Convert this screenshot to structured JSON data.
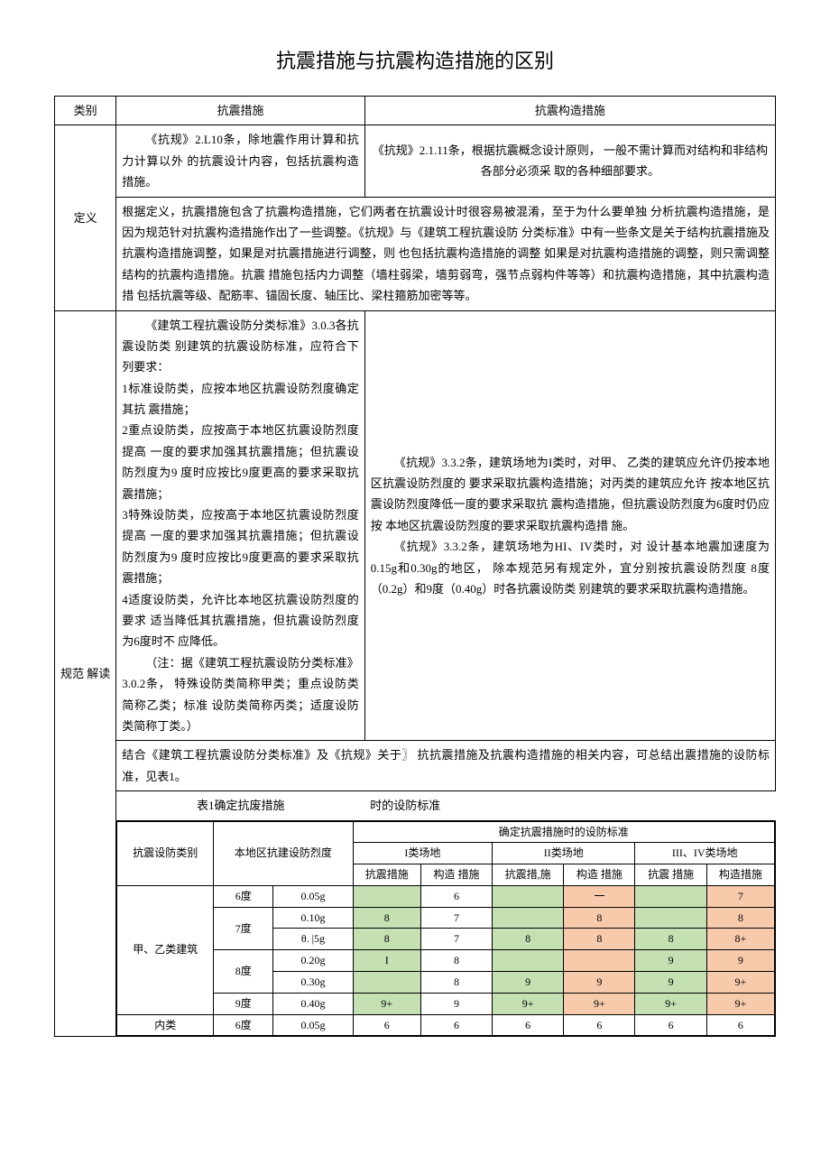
{
  "title": "抗震措施与抗震构造措施的区别",
  "headers": {
    "cat": "类别",
    "c1": "抗震措施",
    "c2": "抗震构造措施"
  },
  "rows": {
    "def_label": "定义",
    "def_c1": "《抗规》2.L10条，除地震作用计算和抗力计算以外 的抗震设计内容，包括抗震构造措施。",
    "def_c2": "《抗规》2.1.11条，根据抗震概念设计原则， 一般不需计算而对结构和非结构各部分必须采 取的各种细部要求。",
    "def_note": "根据定义，抗震措施包含了抗震构造措施，它们两者在抗震设计时很容易被混淆，至于为什么要单独 分析抗震构造措施，是因为规范针对抗震构造措施作出了一些调整。《抗规》与《建筑工程抗震设防 分类标准》中有一些条文是关于结构抗震措施及抗震构造措施调整，如果是对抗震措施进行调整，则 也包括抗震构造措施的调整 如果是对抗震构造措施的调整，则只需调整结构的抗震构造措施。抗震 措施包括内力调整（墙柱弱梁，墙剪弱弯，强节点弱构件等等）和抗震构造措施，其中抗震构造措 包括抗震等级、配筋率、锚固长度、轴压比、梁柱箍筋加密等等。",
    "spec_label": "规范 解读",
    "spec_c1_p1": "《建筑工程抗震设防分类标准》3.0.3各抗震设防类 别建筑的抗震设防标准，应符合下列要求：",
    "spec_c1_p2": "1标准设防类，应按本地区抗震设防烈度确定其抗 震措施；",
    "spec_c1_p3": "2重点设防类，应按高于本地区抗震设防烈度提高 一度的要求加强其抗震措施；但抗震设防烈度为9 度时应按比9度更高的要求采取抗震措施；",
    "spec_c1_p4": "3特殊设防类，应按高于本地区抗震设防烈度提高 一度的要求加强其抗震措施；但抗震设防烈度为9 度时应按比9度更高的要求采取抗震措施；",
    "spec_c1_p5": "4适度设防类，允许比本地区抗震设防烈度的要求 适当降低其抗震措施，但抗震设防烈度为6度时不 应降低。",
    "spec_c1_p6": "（注：据《建筑工程抗震设防分类标准》3.0.2条，  特殊设防类简称甲类；重点设防类简称乙类；标准 设防类简称丙类；适度设防类简称丁类。）",
    "spec_c2_p1": "《抗规》3.3.2条，建筑场地为I类时，对甲、 乙类的建筑应允许仍按本地区抗震设防烈度的 要求采取抗震构造措施；对丙类的建筑应允许 按本地区抗震设防烈度降低一度的要求采取抗 震构造措施，但抗震设防烈度为6度时仍应按 本地区抗震设防烈度的要求采取抗震构造措 施。",
    "spec_c2_p2": "《抗规》3.3.2条，建筑场地为HI、IV类时，对 设计基本地震加速度为0.15g和0.30g的地区， 除本规范另有规定外，宜分别按抗震设防烈度 8度（0.2g）和9度（0.40g）时各抗震设防类 别建筑的要求采取抗震构造措施。",
    "combine": "结合《建筑工程抗震设防分类标准》及《抗规》关于〗  抗抗震措施及抗震构造措施的相关内容，可总结出震措施的设防标准，见表1。",
    "tbl_caption_l": "表1确定抗废措施",
    "tbl_caption_r": "时的设防标准"
  },
  "inner": {
    "h_cat": "抗震设防类别",
    "h_local": "本地区抗建设防烈度",
    "h_std": "确定抗震措施时的设防标准",
    "h_s1": "I类场地",
    "h_s2": "II类场地",
    "h_s3": "III、IV类场地",
    "h_kz": "抗震措施",
    "h_gz": "构造 措施",
    "h_kz2": "抗震措,施",
    "h_kz3": "抗震 措施",
    "h_gz3": "构造措施",
    "cat1": "甲、乙类建筑",
    "cat2": "内类",
    "deg6": "6度",
    "deg7": "7度",
    "deg8": "8度",
    "deg9": "9度",
    "g005": "0.05g",
    "g010": "0.10g",
    "g015": "θ. |5g",
    "g020": "0.20g",
    "g030": "0.30g",
    "g040": "0.40g",
    "v6": "6",
    "v7": "7",
    "v8": "8",
    "v8p": "8+",
    "v9": "9",
    "v9p": "9+",
    "dash": "一"
  },
  "colors": {
    "green": "#c5e0b3",
    "orange": "#f7caac"
  }
}
